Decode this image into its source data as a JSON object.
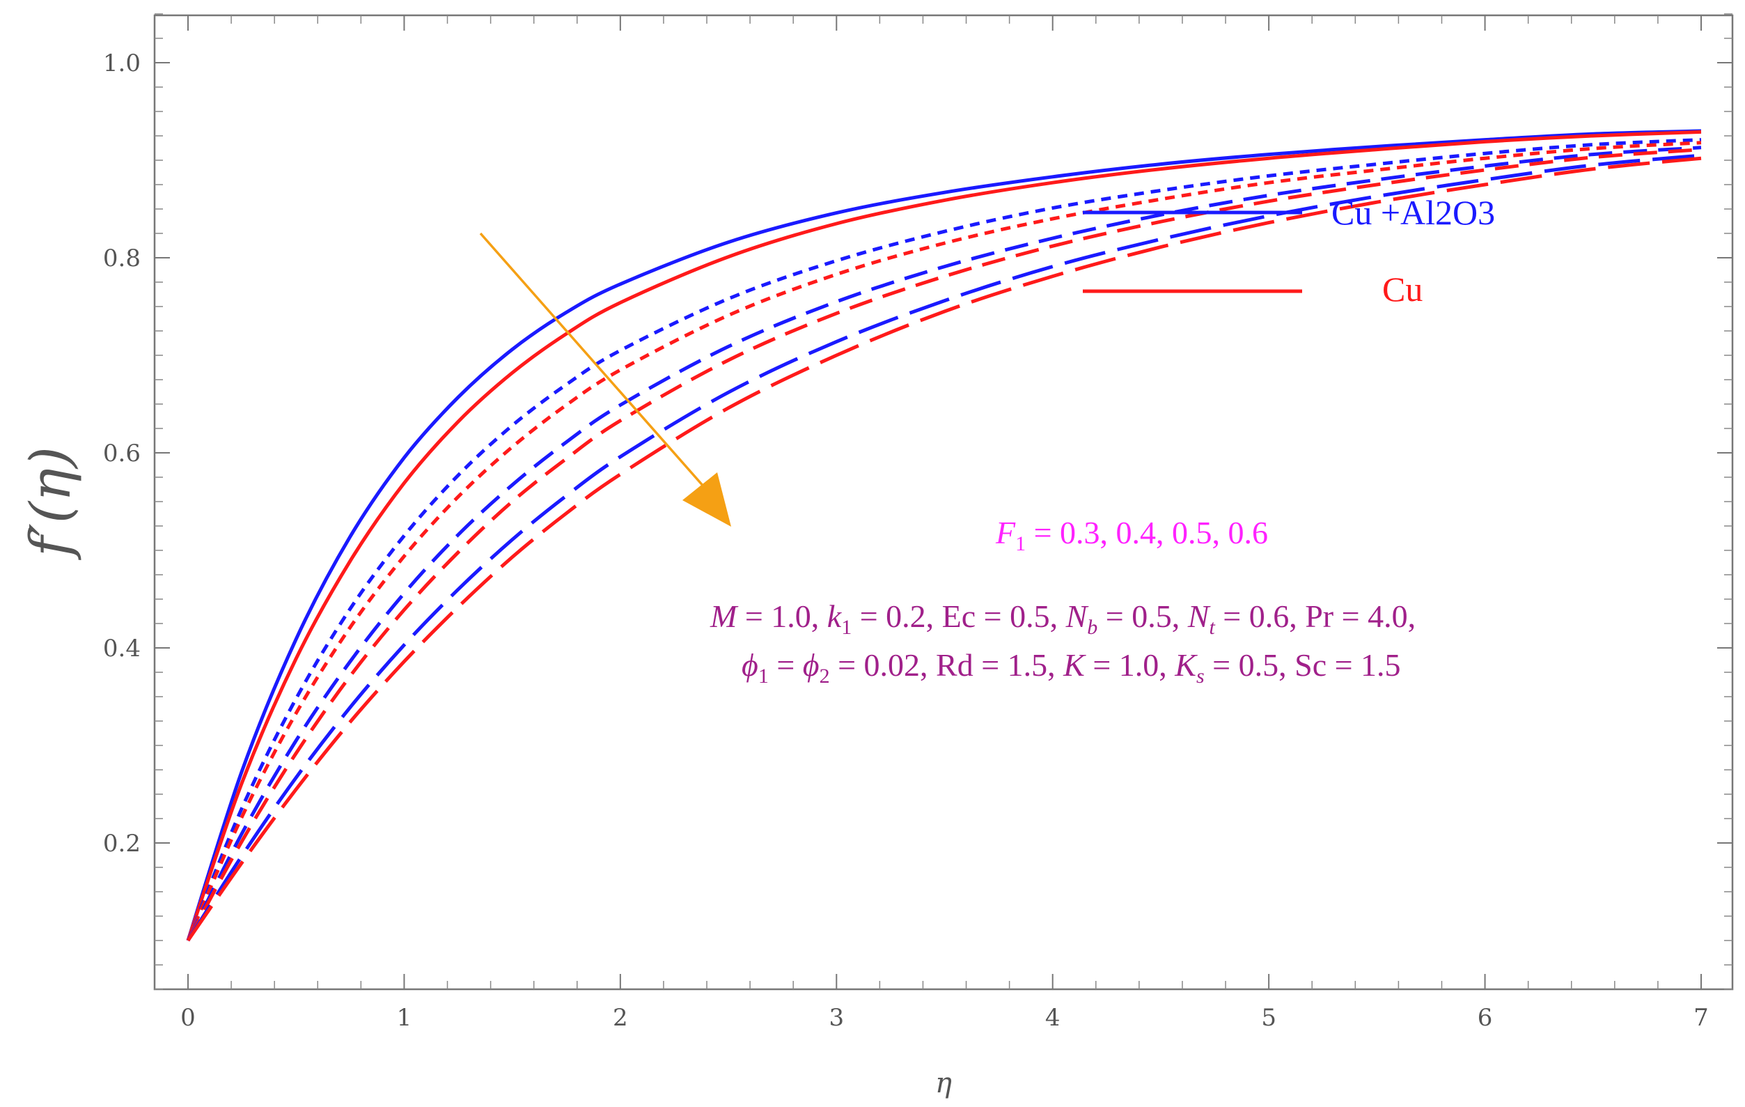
{
  "chart_data": {
    "type": "line",
    "xlabel": "η",
    "ylabel": "f′(η)",
    "xlim": [
      0,
      7
    ],
    "ylim": [
      0.05,
      1.05
    ],
    "x_ticks": [
      "0",
      "1",
      "2",
      "3",
      "4",
      "5",
      "6",
      "7"
    ],
    "y_ticks": [
      "0.2",
      "0.4",
      "0.6",
      "0.8",
      "1.0"
    ],
    "grid": false,
    "legend": {
      "position": "top-right",
      "entries": [
        {
          "label": "Cu +Al2O3",
          "color": "#1a1aff"
        },
        {
          "label": "Cu",
          "color": "#ff1a1a"
        }
      ]
    },
    "x": [
      0,
      0.25,
      0.5,
      0.75,
      1,
      1.25,
      1.5,
      1.75,
      2,
      2.5,
      3,
      3.5,
      4,
      4.5,
      5,
      5.5,
      6,
      6.5,
      7
    ],
    "series": [
      {
        "fluid": "Cu +Al2O3",
        "F1": 0.3,
        "color": "#1a1aff",
        "dash": "solid",
        "values": [
          0.1,
          0.274,
          0.409,
          0.514,
          0.595,
          0.657,
          0.706,
          0.744,
          0.773,
          0.816,
          0.846,
          0.867,
          0.883,
          0.896,
          0.906,
          0.914,
          0.921,
          0.927,
          0.93
        ]
      },
      {
        "fluid": "Cu",
        "F1": 0.3,
        "color": "#ff1a1a",
        "dash": "solid",
        "values": [
          0.1,
          0.262,
          0.389,
          0.489,
          0.569,
          0.632,
          0.682,
          0.722,
          0.754,
          0.801,
          0.835,
          0.859,
          0.877,
          0.891,
          0.902,
          0.911,
          0.919,
          0.925,
          0.929
        ]
      },
      {
        "fluid": "Cu +Al2O3",
        "F1": 0.4,
        "color": "#1a1aff",
        "dash": "short",
        "values": [
          0.1,
          0.236,
          0.348,
          0.44,
          0.515,
          0.577,
          0.628,
          0.67,
          0.705,
          0.758,
          0.797,
          0.827,
          0.851,
          0.869,
          0.884,
          0.896,
          0.907,
          0.916,
          0.921
        ]
      },
      {
        "fluid": "Cu",
        "F1": 0.4,
        "color": "#ff1a1a",
        "dash": "short",
        "values": [
          0.1,
          0.227,
          0.333,
          0.421,
          0.494,
          0.555,
          0.606,
          0.649,
          0.685,
          0.741,
          0.783,
          0.815,
          0.84,
          0.86,
          0.877,
          0.89,
          0.902,
          0.912,
          0.918
        ]
      },
      {
        "fluid": "Cu +Al2O3",
        "F1": 0.5,
        "color": "#1a1aff",
        "dash": "medium",
        "values": [
          0.1,
          0.21,
          0.305,
          0.386,
          0.456,
          0.516,
          0.567,
          0.611,
          0.649,
          0.709,
          0.755,
          0.791,
          0.82,
          0.844,
          0.864,
          0.88,
          0.894,
          0.906,
          0.913
        ]
      },
      {
        "fluid": "Cu",
        "F1": 0.5,
        "color": "#ff1a1a",
        "dash": "medium",
        "values": [
          0.1,
          0.202,
          0.292,
          0.371,
          0.439,
          0.498,
          0.55,
          0.594,
          0.633,
          0.695,
          0.743,
          0.781,
          0.812,
          0.837,
          0.858,
          0.875,
          0.89,
          0.903,
          0.911
        ]
      },
      {
        "fluid": "Cu +Al2O3",
        "F1": 0.6,
        "color": "#1a1aff",
        "dash": "long",
        "values": [
          0.1,
          0.187,
          0.267,
          0.339,
          0.403,
          0.46,
          0.511,
          0.556,
          0.596,
          0.662,
          0.714,
          0.756,
          0.791,
          0.819,
          0.843,
          0.863,
          0.88,
          0.895,
          0.905
        ]
      },
      {
        "fluid": "Cu",
        "F1": 0.6,
        "color": "#ff1a1a",
        "dash": "long",
        "values": [
          0.1,
          0.18,
          0.255,
          0.324,
          0.386,
          0.442,
          0.493,
          0.538,
          0.578,
          0.646,
          0.7,
          0.745,
          0.781,
          0.811,
          0.836,
          0.857,
          0.875,
          0.891,
          0.902
        ]
      }
    ],
    "annotations": {
      "arrow_color": "#f5a014",
      "param_label_color": "#ff22ff",
      "param_label": "F₁ = 0.3, 0.4, 0.5, 0.6",
      "conditions_color": "#a0208a",
      "conditions_line1": "M = 1.0, k₁ = 0.2, Ec = 0.5, N_b = 0.5, N_t = 0.6, Pr = 4.0,",
      "conditions_line2": "ϕ₁ = ϕ₂ = 0.02, Rd = 1.5, K = 1.0, K_s = 0.5, Sc = 1.5"
    }
  }
}
